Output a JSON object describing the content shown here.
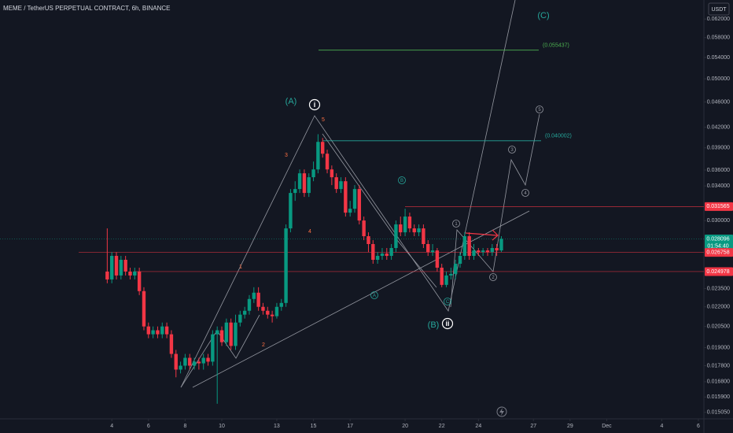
{
  "chart_data": {
    "type": "candlestick",
    "title": "MEME / TetherUS PERPETUAL CONTRACT, 6h, BINANCE",
    "currency": "USDT",
    "up_color": "#089981",
    "down_color": "#f23645",
    "log_scale": true,
    "grid": false,
    "x": [
      3.75,
      4,
      4.25,
      4.5,
      4.75,
      5,
      5.25,
      5.5,
      5.75,
      6,
      6.25,
      6.5,
      6.75,
      7,
      7.25,
      7.5,
      7.75,
      8,
      8.25,
      8.5,
      8.75,
      9,
      9.25,
      9.5,
      9.75,
      10,
      10.25,
      10.5,
      10.75,
      11,
      11.25,
      11.5,
      11.75,
      12,
      12.25,
      12.5,
      12.75,
      13,
      13.25,
      13.5,
      13.75,
      14,
      14.25,
      14.5,
      14.75,
      15,
      15.25,
      15.5,
      15.75,
      16,
      16.25,
      16.5,
      16.75,
      17,
      17.25,
      17.5,
      17.75,
      18,
      18.25,
      18.5,
      18.75,
      19,
      19.25,
      19.5,
      19.75,
      20,
      20.25,
      20.5,
      20.75,
      21,
      21.25,
      21.5,
      21.75,
      22,
      22.25,
      22.5,
      22.75,
      23,
      23.25,
      23.5,
      23.75,
      24,
      24.25,
      24.5,
      24.75,
      25,
      25.25
    ],
    "open": [
      0.02498,
      0.02428,
      0.02643,
      0.02463,
      0.02606,
      0.02498,
      0.02463,
      0.02498,
      0.02328,
      0.0205,
      0.01993,
      0.02022,
      0.01993,
      0.0205,
      0.01993,
      0.01857,
      0.01755,
      0.0178,
      0.01831,
      0.0178,
      0.01806,
      0.01795,
      0.01831,
      0.01806,
      0.01993,
      0.02022,
      0.01937,
      0.02079,
      0.01911,
      0.02079,
      0.02139,
      0.02169,
      0.02263,
      0.02315,
      0.022,
      0.02169,
      0.02139,
      0.02127,
      0.022,
      0.02231,
      0.02918,
      0.03315,
      0.03362,
      0.03558,
      0.03315,
      0.03508,
      0.03608,
      0.03984,
      0.03818,
      0.03608,
      0.03508,
      0.03362,
      0.03458,
      0.03088,
      0.03132,
      0.03362,
      0.03002,
      0.02837,
      0.02758,
      0.02606,
      0.02643,
      0.02665,
      0.02643,
      0.02719,
      0.0296,
      0.02877,
      0.03045,
      0.02918,
      0.02877,
      0.02918,
      0.02758,
      0.0268,
      0.02695,
      0.02533,
      0.02381,
      0.02463,
      0.02477,
      0.02569,
      0.02643,
      0.02837,
      0.02643,
      0.02695,
      0.0268,
      0.02695,
      0.0268,
      0.02719,
      0.02695
    ],
    "high": [
      0.02918,
      0.0268,
      0.0268,
      0.02643,
      0.02643,
      0.02533,
      0.02533,
      0.02533,
      0.02361,
      0.02079,
      0.0205,
      0.0205,
      0.02079,
      0.02079,
      0.02022,
      0.01884,
      0.01806,
      0.01857,
      0.01857,
      0.01831,
      0.01831,
      0.01857,
      0.01857,
      0.02022,
      0.0205,
      0.0205,
      0.02109,
      0.02109,
      0.02139,
      0.02169,
      0.022,
      0.02295,
      0.02361,
      0.02361,
      0.02231,
      0.022,
      0.02169,
      0.02231,
      0.02263,
      0.0296,
      0.03362,
      0.03458,
      0.03608,
      0.03608,
      0.03558,
      0.03712,
      0.04096,
      0.04041,
      0.03873,
      0.0366,
      0.03558,
      0.03508,
      0.03508,
      0.03222,
      0.0341,
      0.0341,
      0.03045,
      0.02877,
      0.02797,
      0.0268,
      0.02719,
      0.02719,
      0.02758,
      0.03002,
      0.03045,
      0.03132,
      0.03088,
      0.0296,
      0.0296,
      0.0296,
      0.02797,
      0.02758,
      0.02719,
      0.02569,
      0.02498,
      0.02533,
      0.02606,
      0.0268,
      0.02877,
      0.02877,
      0.02758,
      0.02719,
      0.02719,
      0.02719,
      0.02758,
      0.02758,
      0.02837
    ],
    "low": [
      0.02395,
      0.02395,
      0.02428,
      0.02428,
      0.02463,
      0.02428,
      0.02428,
      0.02295,
      0.02022,
      0.01965,
      0.01965,
      0.01965,
      0.01965,
      0.01965,
      0.01831,
      0.01707,
      0.01731,
      0.01755,
      0.01755,
      0.01755,
      0.01755,
      0.01755,
      0.0178,
      0.0178,
      0.01552,
      0.01911,
      0.01911,
      0.01884,
      0.01884,
      0.0205,
      0.02109,
      0.02139,
      0.02231,
      0.02169,
      0.02139,
      0.02109,
      0.02079,
      0.02109,
      0.02169,
      0.022,
      0.02877,
      0.03222,
      0.03315,
      0.03268,
      0.03268,
      0.03458,
      0.03558,
      0.03765,
      0.03558,
      0.0341,
      0.03315,
      0.03315,
      0.03045,
      0.03045,
      0.03088,
      0.0296,
      0.02797,
      0.0268,
      0.02569,
      0.02569,
      0.02606,
      0.02606,
      0.02606,
      0.0268,
      0.02837,
      0.02837,
      0.02877,
      0.02837,
      0.02837,
      0.02719,
      0.02643,
      0.02643,
      0.02498,
      0.02361,
      0.02361,
      0.02428,
      0.02428,
      0.02533,
      0.02606,
      0.02606,
      0.02606,
      0.02643,
      0.02643,
      0.02643,
      0.02643,
      0.02643,
      0.0268
    ],
    "close": [
      0.02428,
      0.02643,
      0.02463,
      0.02606,
      0.02498,
      0.02463,
      0.02498,
      0.02328,
      0.0205,
      0.01993,
      0.02022,
      0.01993,
      0.0205,
      0.01993,
      0.01857,
      0.01755,
      0.0178,
      0.01831,
      0.0178,
      0.01806,
      0.01795,
      0.01831,
      0.01806,
      0.01993,
      0.02022,
      0.01937,
      0.02079,
      0.01911,
      0.02079,
      0.02139,
      0.02169,
      0.02263,
      0.02315,
      0.022,
      0.02169,
      0.02139,
      0.02127,
      0.022,
      0.02231,
      0.02918,
      0.03315,
      0.03362,
      0.03558,
      0.03315,
      0.03508,
      0.03608,
      0.03984,
      0.03818,
      0.03608,
      0.03508,
      0.03362,
      0.03458,
      0.03088,
      0.03132,
      0.03362,
      0.03002,
      0.02837,
      0.02758,
      0.02606,
      0.02643,
      0.02665,
      0.02643,
      0.02719,
      0.0296,
      0.02877,
      0.03045,
      0.02918,
      0.02877,
      0.02918,
      0.02758,
      0.0268,
      0.02695,
      0.02533,
      0.02381,
      0.02463,
      0.02477,
      0.02569,
      0.02643,
      0.02837,
      0.02643,
      0.02695,
      0.0268,
      0.02695,
      0.0268,
      0.02719,
      0.02695,
      0.028096
    ],
    "xlim": [
      -2.1,
      36.3
    ],
    "xticks": [
      4,
      6,
      8,
      10,
      13,
      15,
      17,
      20,
      22,
      24,
      27,
      29,
      {
        "value": 31,
        "label": "Dec"
      },
      {
        "value": 34,
        "label": "4"
      },
      {
        "value": 36,
        "label": "6"
      }
    ],
    "ylim": [
      0.0147,
      0.0664
    ],
    "yticks": [
      {
        "value": 0.062,
        "label": "0.062000"
      },
      {
        "value": 0.058,
        "label": "0.058000"
      },
      {
        "value": 0.054,
        "label": "0.054000"
      },
      {
        "value": 0.05,
        "label": "0.050000"
      },
      {
        "value": 0.046,
        "label": "0.046000"
      },
      {
        "value": 0.042,
        "label": "0.042000"
      },
      {
        "value": 0.039,
        "label": "0.039000"
      },
      {
        "value": 0.036,
        "label": "0.036000"
      },
      {
        "value": 0.034,
        "label": "0.034000"
      },
      {
        "value": 0.03,
        "label": "0.030000"
      },
      {
        "value": 0.0235,
        "label": "0.023500"
      },
      {
        "value": 0.022,
        "label": "0.022000"
      },
      {
        "value": 0.0205,
        "label": "0.020500"
      },
      {
        "value": 0.019,
        "label": "0.019000"
      },
      {
        "value": 0.0178,
        "label": "0.017800"
      },
      {
        "value": 0.0168,
        "label": "0.016800"
      },
      {
        "value": 0.0159,
        "label": "0.015900"
      },
      {
        "value": 0.01505,
        "label": "0.015050"
      }
    ],
    "price_levels": [
      {
        "value": 0.031565,
        "color": "#f23645"
      },
      {
        "value": 0.028096,
        "color": "#089981",
        "countdown": "01:54:40"
      },
      {
        "value": 0.026758,
        "color": "#f23645"
      },
      {
        "value": 0.024978,
        "color": "#f23645"
      }
    ],
    "fib_levels": [
      {
        "value": 0.055437,
        "label": "(0.055437)",
        "color": "#4caf50"
      },
      {
        "value": 0.040002,
        "label": "(0.040002)",
        "color": "#26a69a"
      }
    ],
    "wave_labels": [
      "(A)",
      "i",
      "1",
      "2",
      "3",
      "4",
      "5",
      "A",
      "B",
      "C",
      "(B)",
      "ii",
      "1",
      "2",
      "3",
      "4",
      "5",
      "(C)"
    ]
  }
}
